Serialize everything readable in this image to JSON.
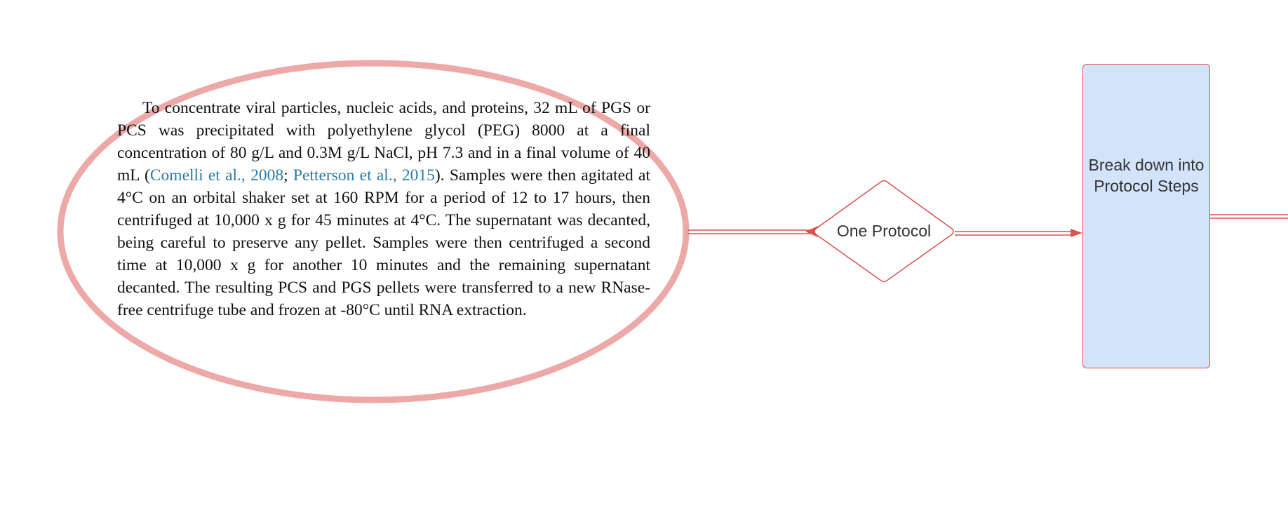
{
  "canvas": {
    "background": "#ffffff"
  },
  "colors": {
    "ellipse_stroke": "#eca9a7",
    "connector_stroke": "#d9534f",
    "process_fill": "#d2e3fa",
    "citation_link": "#2a7aa8"
  },
  "source_text": {
    "segments": [
      {
        "text": "To concentrate viral particles, nucleic acids, and proteins, 32 mL of PGS or PCS was precipitated with polyethylene glycol (PEG) 8000 at a final concentration of 80 g/L and 0.3M g/L NaCl, pH 7.3 and in a final volume of 40 mL (",
        "link": false
      },
      {
        "text": "Comelli et al., 2008",
        "link": true
      },
      {
        "text": "; ",
        "link": false
      },
      {
        "text": "Petterson et al., 2015",
        "link": true
      },
      {
        "text": "). Samples were then agitated at 4°C on an orbital shaker set at 160 RPM for a period of 12 to 17 hours, then centrifuged at 10,000 x g for 45 minutes at 4°C. The supernatant was decanted, being careful to preserve any pellet. Samples were then centrifuged a second time at 10,000 x g for another 10 min­utes and the remaining supernatant decanted. The resulting PCS and PGS pellets were transferred to a new RNase-free centrifuge tube and frozen at -80°C until RNA extraction.",
        "link": false
      }
    ]
  },
  "decision_node": {
    "label": "One Protocol",
    "icon": "diamond-shape"
  },
  "process_node": {
    "label": "Break down into Protocol Steps",
    "icon": "rectangle-shape"
  }
}
